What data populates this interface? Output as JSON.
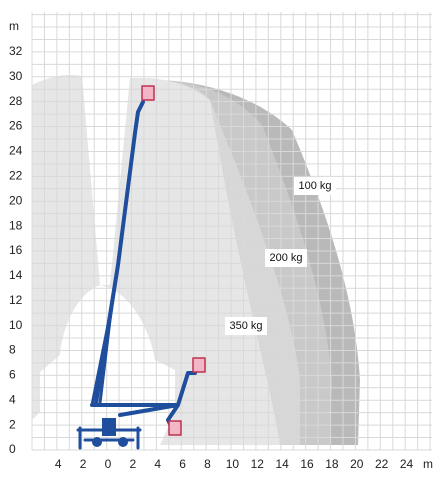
{
  "axis": {
    "y_unit": "m",
    "x_unit": "m",
    "yticks": [
      0,
      2,
      4,
      6,
      8,
      10,
      12,
      14,
      16,
      18,
      20,
      22,
      24,
      26,
      28,
      30,
      32
    ],
    "xticks_left": [
      4,
      2
    ],
    "xticks_right": [
      0,
      2,
      4,
      6,
      8,
      10,
      12,
      14,
      16,
      18,
      20,
      22,
      24
    ]
  },
  "loads": [
    {
      "label": "100 kg"
    },
    {
      "label": "200 kg"
    },
    {
      "label": "350 kg"
    }
  ]
}
